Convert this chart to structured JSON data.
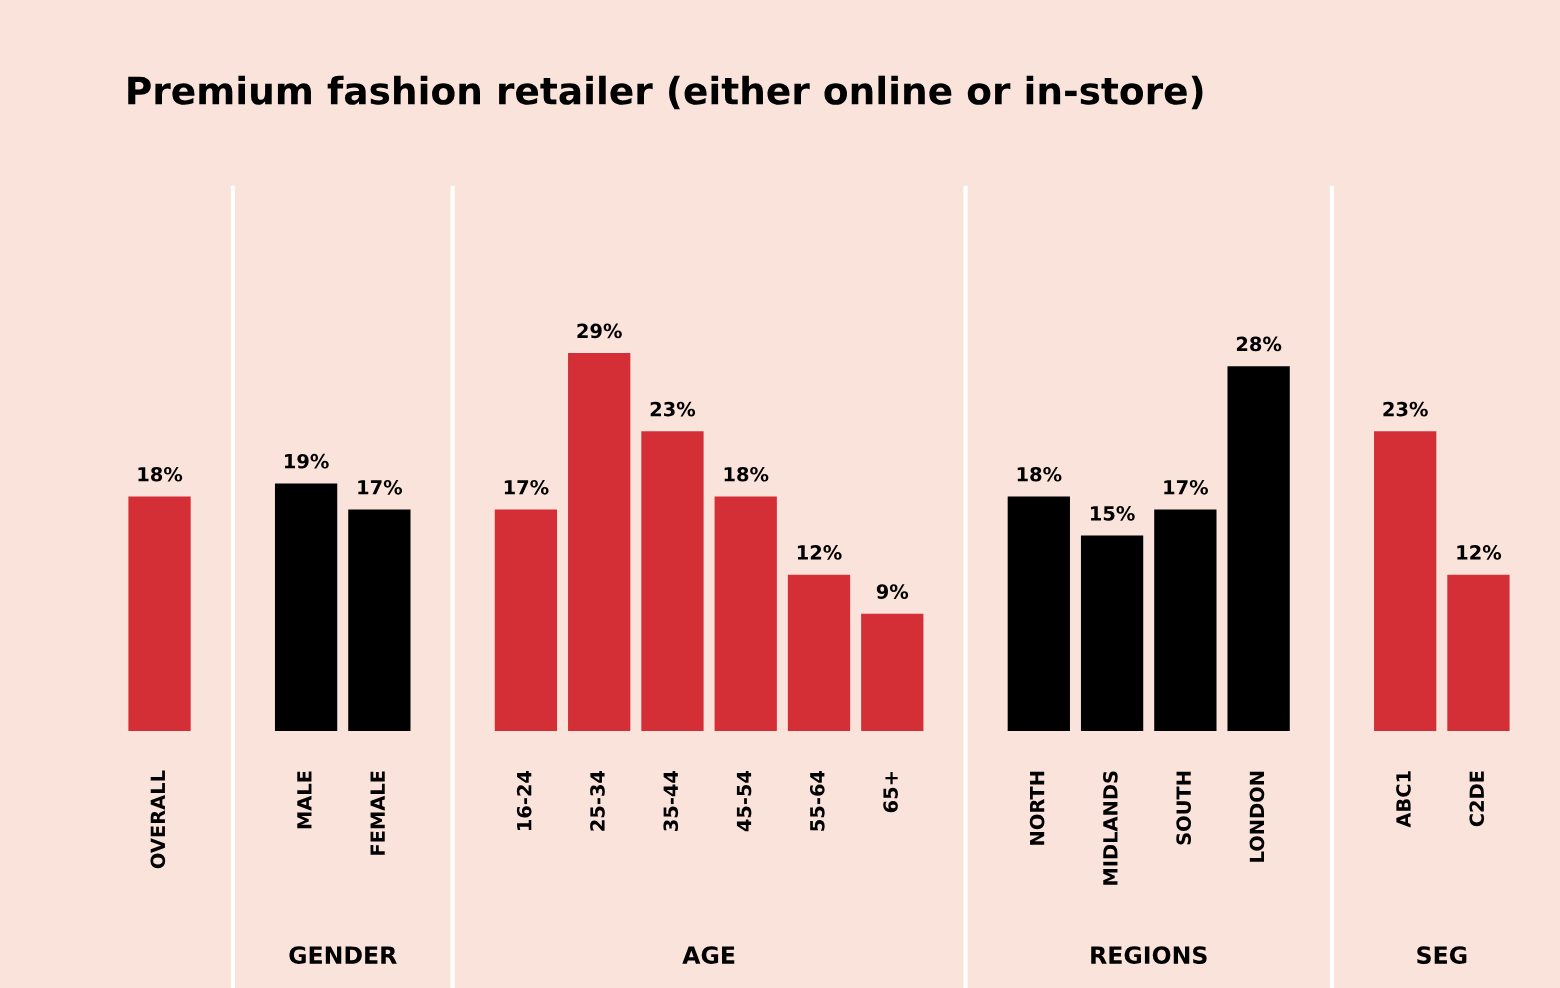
{
  "chart_data": {
    "type": "bar",
    "title": "Premium fashion retailer (either online or in-store)",
    "categories": [
      "OVERALL",
      "MALE",
      "FEMALE",
      "16-24",
      "25-34",
      "35-44",
      "45-54",
      "55-64",
      "65+",
      "NORTH",
      "MIDLANDS",
      "SOUTH",
      "LONDON",
      "ABC1",
      "C2DE"
    ],
    "values": [
      18,
      19,
      17,
      17,
      29,
      23,
      18,
      12,
      9,
      18,
      15,
      17,
      28,
      23,
      12
    ],
    "colors": [
      "#d42e37",
      "#000000",
      "#000000",
      "#d42e37",
      "#d42e37",
      "#d42e37",
      "#d42e37",
      "#d42e37",
      "#d42e37",
      "#000000",
      "#000000",
      "#000000",
      "#000000",
      "#d42e37",
      "#d42e37"
    ],
    "value_labels": [
      "18%",
      "19%",
      "17%",
      "17%",
      "29%",
      "23%",
      "18%",
      "12%",
      "9%",
      "18%",
      "15%",
      "17%",
      "28%",
      "23%",
      "12%"
    ],
    "annotations": [
      "GENDER",
      "AGE",
      "REGIONS",
      "SEG"
    ],
    "grid": false,
    "legend": false
  }
}
